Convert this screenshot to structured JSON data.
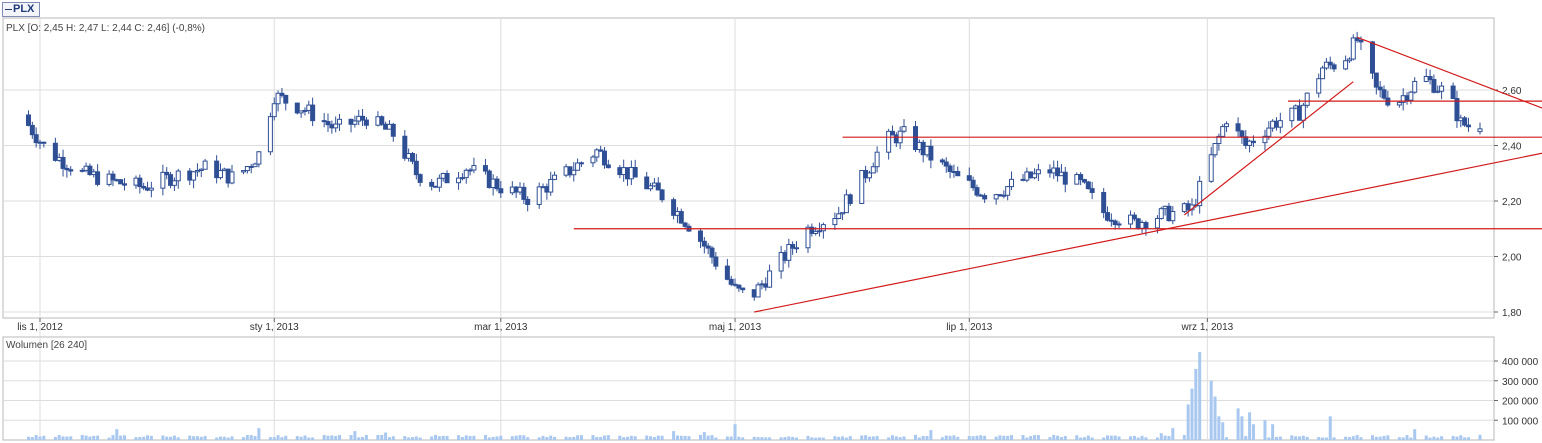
{
  "tab": {
    "label": "PLX"
  },
  "price_panel": {
    "legend": "PLX [O: 2,45  H: 2,47  L: 2,44  C: 2,46] (-0,8%)",
    "y_ticks": [
      "1,80",
      "2,00",
      "2,20",
      "2,40",
      "2,60"
    ],
    "x_ticks": [
      "lis 1, 2012",
      "sty 1, 2013",
      "mar 1, 2013",
      "maj 1, 2013",
      "lip 1, 2013",
      "wrz 1, 2013"
    ]
  },
  "volume_panel": {
    "legend": "Wolumen [26 240]",
    "y_ticks": [
      "100 000",
      "200 000",
      "300 000",
      "400 000"
    ]
  },
  "colors": {
    "up_candle_fill": "#ffffff",
    "down_candle_fill": "#2f4f95",
    "candle_stroke": "#2f4f95",
    "volume_bar": "#a8c8f0",
    "trendline": "#d21a1a",
    "grid": "#dddddd"
  },
  "chart_data": [
    {
      "type": "candlestick",
      "title": "PLX",
      "y_range": [
        1.78,
        2.82
      ],
      "x_ticks": [
        "lis 1, 2012",
        "sty 1, 2013",
        "mar 1, 2013",
        "maj 1, 2013",
        "lip 1, 2013",
        "wrz 1, 2013"
      ],
      "y_ticks": [
        1.8,
        2.0,
        2.2,
        2.4,
        2.6
      ],
      "grid": true,
      "last_candle": {
        "open": 2.45,
        "high": 2.47,
        "low": 2.44,
        "close": 2.46,
        "change_pct": -0.8
      },
      "anchors": [
        [
          "2012-10-27",
          2.51
        ],
        [
          "2012-11-03",
          2.38
        ],
        [
          "2012-11-12",
          2.3
        ],
        [
          "2012-11-20",
          2.27
        ],
        [
          "2012-11-28",
          2.25
        ],
        [
          "2012-12-06",
          2.29
        ],
        [
          "2012-12-14",
          2.32
        ],
        [
          "2012-12-22",
          2.28
        ],
        [
          "2012-12-28",
          2.37
        ],
        [
          "2013-01-01",
          2.58
        ],
        [
          "2013-01-09",
          2.53
        ],
        [
          "2013-01-17",
          2.46
        ],
        [
          "2013-01-25",
          2.5
        ],
        [
          "2013-02-01",
          2.44
        ],
        [
          "2013-02-07",
          2.3
        ],
        [
          "2013-02-12",
          2.26
        ],
        [
          "2013-02-20",
          2.32
        ],
        [
          "2013-03-01",
          2.25
        ],
        [
          "2013-03-08",
          2.21
        ],
        [
          "2013-03-16",
          2.28
        ],
        [
          "2013-03-26",
          2.38
        ],
        [
          "2013-04-03",
          2.3
        ],
        [
          "2013-04-12",
          2.22
        ],
        [
          "2013-04-20",
          2.1
        ],
        [
          "2013-04-26",
          1.98
        ],
        [
          "2013-05-01",
          1.88
        ],
        [
          "2013-05-05",
          1.85
        ],
        [
          "2013-05-12",
          1.97
        ],
        [
          "2013-05-20",
          2.1
        ],
        [
          "2013-05-28",
          2.16
        ],
        [
          "2013-06-04",
          2.3
        ],
        [
          "2013-06-09",
          2.42
        ],
        [
          "2013-06-14",
          2.44
        ],
        [
          "2013-06-20",
          2.37
        ],
        [
          "2013-06-28",
          2.28
        ],
        [
          "2013-07-06",
          2.22
        ],
        [
          "2013-07-14",
          2.27
        ],
        [
          "2013-07-22",
          2.31
        ],
        [
          "2013-07-30",
          2.26
        ],
        [
          "2013-08-05",
          2.16
        ],
        [
          "2013-08-13",
          2.12
        ],
        [
          "2013-08-20",
          2.15
        ],
        [
          "2013-08-28",
          2.17
        ],
        [
          "2013-09-01",
          2.32
        ],
        [
          "2013-09-06",
          2.5
        ],
        [
          "2013-09-11",
          2.4
        ],
        [
          "2013-09-18",
          2.48
        ],
        [
          "2013-09-25",
          2.52
        ],
        [
          "2013-10-01",
          2.68
        ],
        [
          "2013-10-06",
          2.7
        ],
        [
          "2013-10-10",
          2.78
        ],
        [
          "2013-10-15",
          2.6
        ],
        [
          "2013-10-20",
          2.55
        ],
        [
          "2013-10-27",
          2.65
        ],
        [
          "2013-11-03",
          2.58
        ],
        [
          "2013-11-06",
          2.48
        ],
        [
          "2013-11-11",
          2.46
        ]
      ],
      "horizontal_lines": [
        {
          "y": 2.1,
          "from": "2013-03-20",
          "to": "2013-12-01"
        },
        {
          "y": 2.43,
          "from": "2013-05-29",
          "to": "2013-12-01"
        },
        {
          "y": 2.56,
          "from": "2013-09-22",
          "to": "2013-12-01"
        }
      ],
      "trend_lines": [
        {
          "from": [
            "2013-05-06",
            1.8
          ],
          "to": [
            "2013-11-30",
            2.38
          ]
        },
        {
          "from": [
            "2013-08-26",
            2.15
          ],
          "to": [
            "2013-10-09",
            2.63
          ]
        },
        {
          "from": [
            "2013-10-10",
            2.79
          ],
          "to": [
            "2013-11-30",
            2.52
          ]
        }
      ]
    },
    {
      "type": "bar",
      "title": "Wolumen",
      "last_value": 26240,
      "y_range": [
        0,
        460000
      ],
      "y_ticks": [
        100000,
        200000,
        300000,
        400000
      ],
      "baseline": 12000,
      "spikes": [
        [
          "2012-11-21",
          55000
        ],
        [
          "2012-12-28",
          60000
        ],
        [
          "2013-01-22",
          45000
        ],
        [
          "2013-01-30",
          38000
        ],
        [
          "2013-04-15",
          45000
        ],
        [
          "2013-04-23",
          40000
        ],
        [
          "2013-04-28",
          72000
        ],
        [
          "2013-05-01",
          80000
        ],
        [
          "2013-06-21",
          50000
        ],
        [
          "2013-08-17",
          45000
        ],
        [
          "2013-08-20",
          35000
        ],
        [
          "2013-08-23",
          60000
        ],
        [
          "2013-08-25",
          110000
        ],
        [
          "2013-08-27",
          180000
        ],
        [
          "2013-08-28",
          260000
        ],
        [
          "2013-08-29",
          360000
        ],
        [
          "2013-08-30",
          445000
        ],
        [
          "2013-08-31",
          390000
        ],
        [
          "2013-09-02",
          300000
        ],
        [
          "2013-09-03",
          220000
        ],
        [
          "2013-09-04",
          120000
        ],
        [
          "2013-09-05",
          90000
        ],
        [
          "2013-09-07",
          170000
        ],
        [
          "2013-09-08",
          230000
        ],
        [
          "2013-09-09",
          160000
        ],
        [
          "2013-09-10",
          120000
        ],
        [
          "2013-09-12",
          140000
        ],
        [
          "2013-09-13",
          80000
        ],
        [
          "2013-09-16",
          100000
        ],
        [
          "2013-09-18",
          80000
        ],
        [
          "2013-10-03",
          120000
        ],
        [
          "2013-10-25",
          55000
        ]
      ]
    }
  ]
}
